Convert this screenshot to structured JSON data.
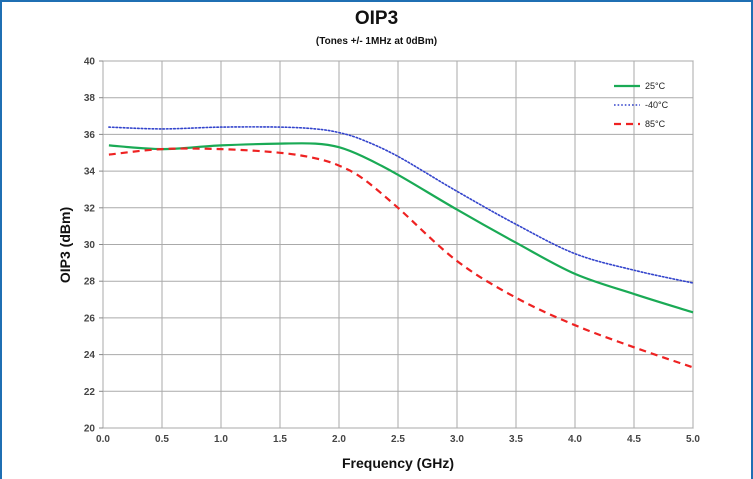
{
  "chart_data": {
    "type": "line",
    "title": "OIP3",
    "subtitle": "(Tones +/- 1MHz at 0dBm)",
    "xlabel": "Frequency (GHz)",
    "ylabel": "OIP3 (dBm)",
    "xlim": [
      0,
      5
    ],
    "ylim": [
      20,
      40
    ],
    "x_ticks": [
      "0.0",
      "0.5",
      "1.0",
      "1.5",
      "2.0",
      "2.5",
      "3.0",
      "3.5",
      "4.0",
      "4.5",
      "5.0"
    ],
    "y_ticks": [
      "20",
      "22",
      "24",
      "26",
      "28",
      "30",
      "32",
      "34",
      "36",
      "38",
      "40"
    ],
    "grid": true,
    "legend_position": "top-right",
    "x": [
      0.05,
      0.5,
      1.0,
      1.5,
      1.8,
      2.0,
      2.2,
      2.5,
      3.0,
      3.5,
      4.0,
      4.5,
      5.0
    ],
    "series": [
      {
        "name": "25°C",
        "color": "#1aaa55",
        "dash": "solid",
        "values": [
          35.4,
          35.2,
          35.4,
          35.5,
          35.5,
          35.3,
          34.8,
          33.8,
          31.9,
          30.1,
          28.4,
          27.3,
          26.3
        ]
      },
      {
        "name": "-40°C",
        "color": "#3344cc",
        "dash": "dotted",
        "values": [
          36.4,
          36.3,
          36.4,
          36.4,
          36.3,
          36.1,
          35.7,
          34.8,
          32.9,
          31.1,
          29.5,
          28.6,
          27.9
        ]
      },
      {
        "name": "85°C",
        "color": "#ee2222",
        "dash": "dashed",
        "values": [
          34.9,
          35.2,
          35.2,
          35.0,
          34.7,
          34.3,
          33.6,
          32.0,
          29.1,
          27.1,
          25.6,
          24.4,
          23.3
        ]
      }
    ]
  }
}
